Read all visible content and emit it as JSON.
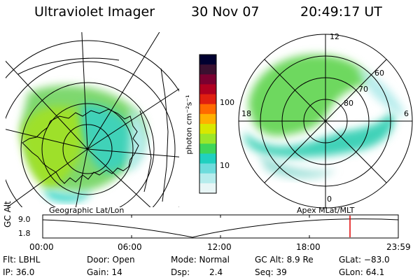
{
  "header": {
    "title": "Ultraviolet Imager",
    "date": "30 Nov 07",
    "time": "20:49:17 UT"
  },
  "colorbar": {
    "unit_label": "photon cm⁻²s⁻¹",
    "ticks": [
      "100",
      "10"
    ],
    "scale": "log",
    "colors": [
      "#000030",
      "#3a1030",
      "#7a0030",
      "#b00020",
      "#e02010",
      "#ff6a00",
      "#ffb000",
      "#d8e800",
      "#9ae62a",
      "#3ed65a",
      "#20d0c0",
      "#6edcdc",
      "#b6ecec",
      "#e8f6f6"
    ]
  },
  "left_map": {
    "caption": "Geographic Lat/Lon"
  },
  "right_map": {
    "caption": "Apex  MLat/MLT",
    "mlt_labels": {
      "top": "12",
      "left": "18",
      "right": "6",
      "bottom": "0"
    },
    "lat_labels": [
      "60",
      "70",
      "80"
    ]
  },
  "timeline": {
    "ylabel": "GC Alt",
    "y_ticks": [
      "9.0",
      "1.8"
    ],
    "x_ticks": [
      "00:00",
      "06:00",
      "12:00",
      "18:00",
      "23:59"
    ]
  },
  "status": {
    "filter": "Flt: LBHL",
    "ip": "IP: 36.0",
    "door": "Door: Open",
    "gain": "Gain: 14",
    "mode": "Mode: Normal",
    "dsp_label": "Dsp:",
    "dsp_value": "2.4",
    "gc_alt": "GC Alt: 8.9 Re",
    "seq": "Seq: 39",
    "glat": "GLat: −83.0",
    "glon": "GLon:  64.1"
  },
  "colors": {
    "marker": "#e00000",
    "axes": "#000000"
  }
}
